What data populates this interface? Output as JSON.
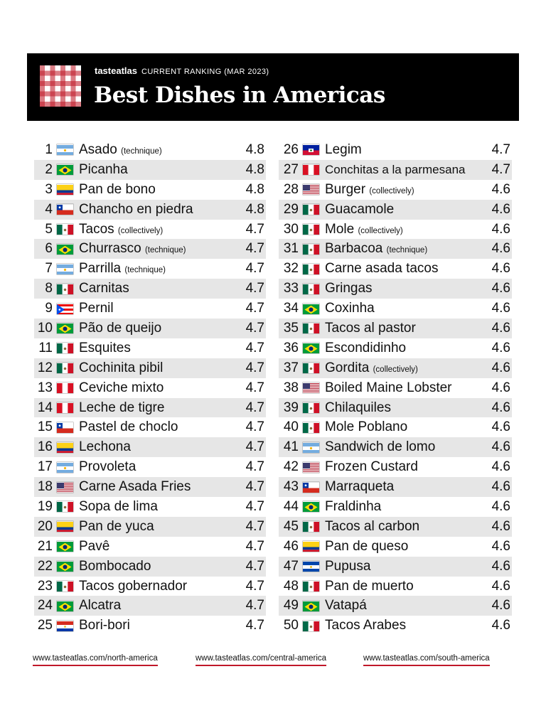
{
  "header": {
    "brand": "tasteatlas",
    "subtitle": "CURRENT RANKING (MAR 2023)",
    "title": "Best Dishes in Americas"
  },
  "left_column": [
    {
      "rank": "1",
      "flag": "argentina",
      "name": "Asado",
      "note": "(technique)",
      "score": "4.8"
    },
    {
      "rank": "2",
      "flag": "brazil",
      "name": "Picanha",
      "note": "",
      "score": "4.8"
    },
    {
      "rank": "3",
      "flag": "colombia",
      "name": "Pan de bono",
      "note": "",
      "score": "4.8"
    },
    {
      "rank": "4",
      "flag": "chile",
      "name": "Chancho en piedra",
      "note": "",
      "score": "4.8"
    },
    {
      "rank": "5",
      "flag": "mexico",
      "name": "Tacos",
      "note": "(collectively)",
      "score": "4.7"
    },
    {
      "rank": "6",
      "flag": "brazil",
      "name": "Churrasco",
      "note": "(technique)",
      "score": "4.7"
    },
    {
      "rank": "7",
      "flag": "argentina",
      "name": "Parrilla",
      "note": "(technique)",
      "score": "4.7"
    },
    {
      "rank": "8",
      "flag": "mexico",
      "name": "Carnitas",
      "note": "",
      "score": "4.7"
    },
    {
      "rank": "9",
      "flag": "puerto-rico",
      "name": "Pernil",
      "note": "",
      "score": "4.7"
    },
    {
      "rank": "10",
      "flag": "brazil",
      "name": "Pão de queijo",
      "note": "",
      "score": "4.7"
    },
    {
      "rank": "11",
      "flag": "mexico",
      "name": "Esquites",
      "note": "",
      "score": "4.7"
    },
    {
      "rank": "12",
      "flag": "mexico",
      "name": "Cochinita pibil",
      "note": "",
      "score": "4.7"
    },
    {
      "rank": "13",
      "flag": "peru",
      "name": "Ceviche mixto",
      "note": "",
      "score": "4.7"
    },
    {
      "rank": "14",
      "flag": "peru",
      "name": "Leche de tigre",
      "note": "",
      "score": "4.7"
    },
    {
      "rank": "15",
      "flag": "chile",
      "name": "Pastel de choclo",
      "note": "",
      "score": "4.7"
    },
    {
      "rank": "16",
      "flag": "colombia",
      "name": "Lechona",
      "note": "",
      "score": "4.7"
    },
    {
      "rank": "17",
      "flag": "argentina",
      "name": "Provoleta",
      "note": "",
      "score": "4.7"
    },
    {
      "rank": "18",
      "flag": "usa",
      "name": "Carne Asada Fries",
      "note": "",
      "score": "4.7"
    },
    {
      "rank": "19",
      "flag": "mexico",
      "name": "Sopa de lima",
      "note": "",
      "score": "4.7"
    },
    {
      "rank": "20",
      "flag": "colombia",
      "name": "Pan de yuca",
      "note": "",
      "score": "4.7"
    },
    {
      "rank": "21",
      "flag": "brazil",
      "name": "Pavê",
      "note": "",
      "score": "4.7"
    },
    {
      "rank": "22",
      "flag": "brazil",
      "name": "Bombocado",
      "note": "",
      "score": "4.7"
    },
    {
      "rank": "23",
      "flag": "mexico",
      "name": "Tacos gobernador",
      "note": "",
      "score": "4.7"
    },
    {
      "rank": "24",
      "flag": "brazil",
      "name": "Alcatra",
      "note": "",
      "score": "4.7"
    },
    {
      "rank": "25",
      "flag": "paraguay",
      "name": "Bori-bori",
      "note": "",
      "score": "4.7"
    }
  ],
  "right_column": [
    {
      "rank": "26",
      "flag": "haiti",
      "name": "Legim",
      "note": "",
      "score": "4.7"
    },
    {
      "rank": "27",
      "flag": "peru",
      "name": "Conchitas a la parmesana",
      "note": "",
      "score": "4.7"
    },
    {
      "rank": "28",
      "flag": "usa",
      "name": "Burger",
      "note": "(collectively)",
      "score": "4.6"
    },
    {
      "rank": "29",
      "flag": "mexico",
      "name": "Guacamole",
      "note": "",
      "score": "4.6"
    },
    {
      "rank": "30",
      "flag": "mexico",
      "name": "Mole",
      "note": "(collectively)",
      "score": "4.6"
    },
    {
      "rank": "31",
      "flag": "mexico",
      "name": "Barbacoa",
      "note": "(technique)",
      "score": "4.6"
    },
    {
      "rank": "32",
      "flag": "mexico",
      "name": "Carne asada tacos",
      "note": "",
      "score": "4.6"
    },
    {
      "rank": "33",
      "flag": "mexico",
      "name": "Gringas",
      "note": "",
      "score": "4.6"
    },
    {
      "rank": "34",
      "flag": "brazil",
      "name": "Coxinha",
      "note": "",
      "score": "4.6"
    },
    {
      "rank": "35",
      "flag": "mexico",
      "name": "Tacos al pastor",
      "note": "",
      "score": "4.6"
    },
    {
      "rank": "36",
      "flag": "brazil",
      "name": "Escondidinho",
      "note": "",
      "score": "4.6"
    },
    {
      "rank": "37",
      "flag": "mexico",
      "name": "Gordita",
      "note": "(collectively)",
      "score": "4.6"
    },
    {
      "rank": "38",
      "flag": "usa",
      "name": "Boiled Maine Lobster",
      "note": "",
      "score": "4.6"
    },
    {
      "rank": "39",
      "flag": "mexico",
      "name": "Chilaquiles",
      "note": "",
      "score": "4.6"
    },
    {
      "rank": "40",
      "flag": "mexico",
      "name": "Mole Poblano",
      "note": "",
      "score": "4.6"
    },
    {
      "rank": "41",
      "flag": "argentina",
      "name": "Sandwich de lomo",
      "note": "",
      "score": "4.6"
    },
    {
      "rank": "42",
      "flag": "usa",
      "name": "Frozen Custard",
      "note": "",
      "score": "4.6"
    },
    {
      "rank": "43",
      "flag": "chile",
      "name": "Marraqueta",
      "note": "",
      "score": "4.6"
    },
    {
      "rank": "44",
      "flag": "brazil",
      "name": "Fraldinha",
      "note": "",
      "score": "4.6"
    },
    {
      "rank": "45",
      "flag": "mexico",
      "name": "Tacos al carbon",
      "note": "",
      "score": "4.6"
    },
    {
      "rank": "46",
      "flag": "colombia",
      "name": "Pan de queso",
      "note": "",
      "score": "4.6"
    },
    {
      "rank": "47",
      "flag": "el-salvador",
      "name": "Pupusa",
      "note": "",
      "score": "4.6"
    },
    {
      "rank": "48",
      "flag": "mexico",
      "name": "Pan de muerto",
      "note": "",
      "score": "4.6"
    },
    {
      "rank": "49",
      "flag": "brazil",
      "name": "Vatapá",
      "note": "",
      "score": "4.6"
    },
    {
      "rank": "50",
      "flag": "mexico",
      "name": "Tacos Arabes",
      "note": "",
      "score": "4.6"
    }
  ],
  "footer": {
    "links": [
      "www.tasteatlas.com/north-america",
      "www.tasteatlas.com/central-america",
      "www.tasteatlas.com/south-america"
    ]
  },
  "colors": {
    "header_bg": "#000000",
    "row_alt": "#e6e6e6",
    "accent_red": "#c0182a"
  }
}
